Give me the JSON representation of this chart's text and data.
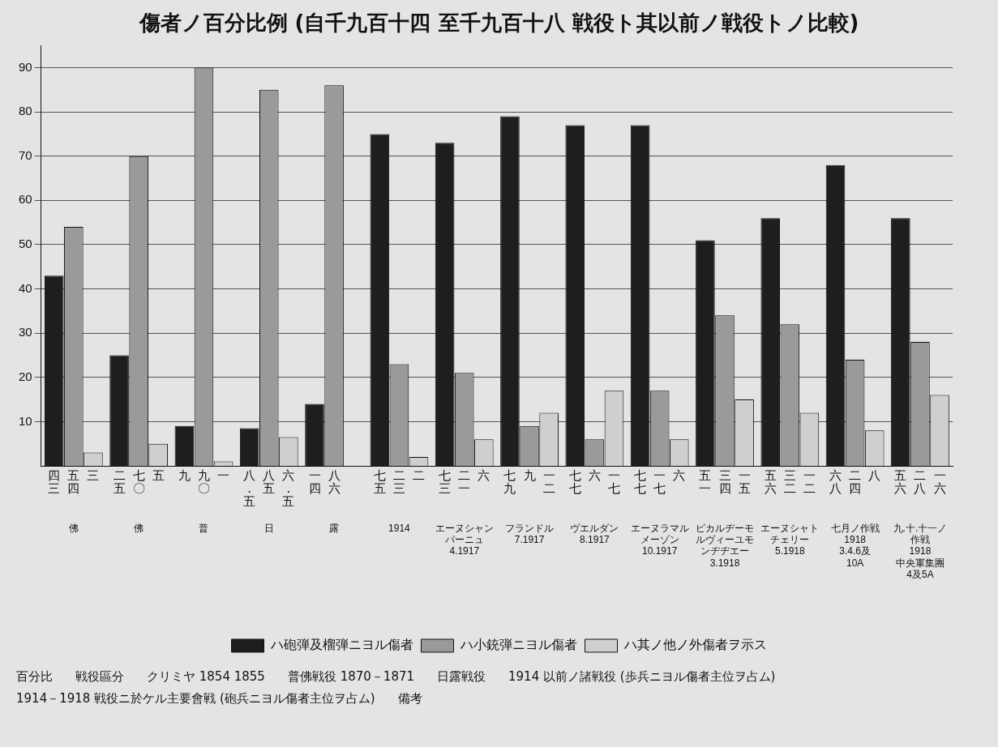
{
  "chart_data": {
    "type": "bar",
    "title": "傷者ノ百分比例 (自千九百十四 至千九百十八 戦役ト其以前ノ戦役トノ比較)",
    "categories": [
      "佛",
      "佛",
      "普",
      "日",
      "露",
      "1914",
      "エーヌシャンパーニュ\n4.1917",
      "フランドル\n7.1917",
      "ヴエルダン\n8.1917",
      "エーヌラマルメーゾン\n10.1917",
      "ピカルヂーモルヴィーユモンヂヂエー\n3.1918",
      "エーヌシャトチェリー\n5.1918",
      "七月ノ作戦\n1918\n3.4.6及\n10A",
      "九.十.十一ノ作戦\n1918\n中央軍集團\n4及5A"
    ],
    "series": [
      {
        "name": "ハ砲弾及榴弾ニヨル傷者",
        "color": "#1e1e1e",
        "values": [
          43,
          25,
          9,
          8.5,
          14,
          75,
          73,
          79,
          77,
          77,
          51,
          56,
          68,
          56
        ],
        "value_labels": [
          "四三",
          "二五",
          "九",
          "八.五",
          "一四",
          "七五",
          "七三",
          "七九",
          "七七",
          "七七",
          "五一",
          "五六",
          "六八",
          "五六"
        ]
      },
      {
        "name": "ハ小銃弾ニヨル傷者",
        "color": "#9a9a9a",
        "values": [
          54,
          70,
          90,
          85,
          86,
          23,
          21,
          9,
          6,
          17,
          34,
          32,
          24,
          28
        ],
        "value_labels": [
          "五四",
          "七〇",
          "九〇",
          "八五",
          "八六",
          "二三",
          "二一",
          "九",
          "六",
          "一七",
          "三四",
          "三二",
          "二四",
          "二八"
        ]
      },
      {
        "name": "ハ其ノ他ノ外傷者ヲ示ス",
        "color": "#cfcfcf",
        "values": [
          3,
          5,
          1,
          6.5,
          null,
          2,
          6,
          12,
          17,
          6,
          15,
          12,
          8,
          16
        ],
        "value_labels": [
          "三",
          "五",
          "一",
          "六.五",
          null,
          "二",
          "六",
          "一二",
          "一七",
          "六",
          "一五",
          "一二",
          "八",
          "一六"
        ]
      }
    ],
    "ylim": [
      0,
      95
    ],
    "yticks": [
      10,
      20,
      30,
      40,
      50,
      60,
      70,
      80,
      90
    ],
    "grid": "y",
    "legend": "bottom",
    "annotations": [
      "百分比",
      "戦役區分",
      "クリミヤ 1854 1855",
      "普佛戦役 1870－1871",
      "日露戦役",
      "1914 以前ノ諸戦役 (歩兵ニヨル傷者主位ヲ占ム)",
      "1914－1918 戦役ニ於ケル主要會戦 (砲兵ニヨル傷者主位ヲ占ム)",
      "備考"
    ]
  }
}
